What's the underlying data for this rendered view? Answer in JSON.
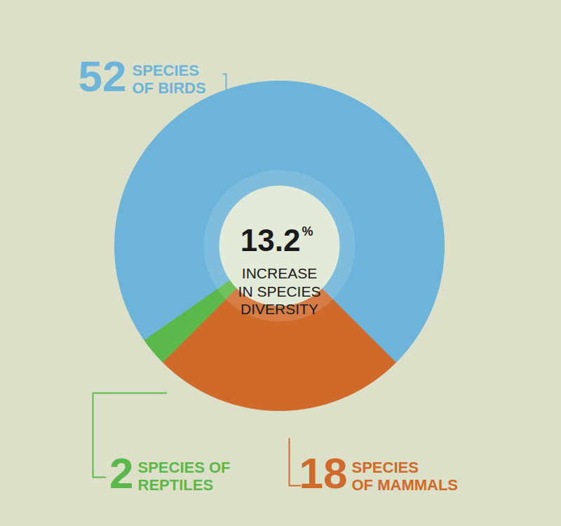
{
  "chart_data": {
    "type": "donut",
    "categories": [
      "SPECIES\nOF BIRDS",
      "SPECIES\nOF MAMMALS",
      "SPECIES OF\nREPTILES"
    ],
    "values": [
      52,
      18,
      2
    ],
    "colors": [
      "#6cb4da",
      "#cf6a2a",
      "#5cb84a"
    ],
    "data_labels": true,
    "annotations": [
      {
        "value": 13.2,
        "label": "13.2%",
        "text": "INCREASE\nIN SPECIES\nDIVERSITY"
      }
    ]
  }
}
